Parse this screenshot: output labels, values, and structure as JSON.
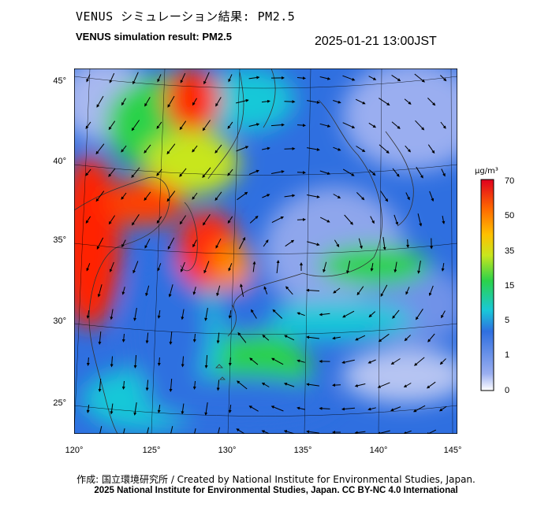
{
  "header": {
    "title_jp": "VENUS シミュレーション結果: PM2.5",
    "title_en": "VENUS simulation result: PM2.5",
    "timestamp": "2025-01-21 13:00JST"
  },
  "map": {
    "lon_range": [
      120,
      145
    ],
    "lat_range": [
      23,
      46
    ],
    "lat_ticks": [
      "45°",
      "40°",
      "35°",
      "30°",
      "25°"
    ],
    "lon_ticks": [
      "120°",
      "125°",
      "130°",
      "135°",
      "140°",
      "145°"
    ],
    "field": "PM2.5 concentration with wind vectors"
  },
  "colorbar": {
    "unit": "μg/m³",
    "ticks": [
      "70",
      "50",
      "35",
      "15",
      "5",
      "1",
      "0"
    ],
    "colors": [
      "#ffffff",
      "#9aaef0",
      "#2f6fe0",
      "#19c8d8",
      "#2bd24a",
      "#c8e61e",
      "#ffc000",
      "#ff6a00",
      "#e0001e"
    ]
  },
  "credits": {
    "line1": "作成: 国立環境研究所 / Created by National Institute for Environmental Studies, Japan.",
    "line2": "2025 National Institute for Environmental Studies, Japan. CC BY-NC 4.0 International"
  }
}
